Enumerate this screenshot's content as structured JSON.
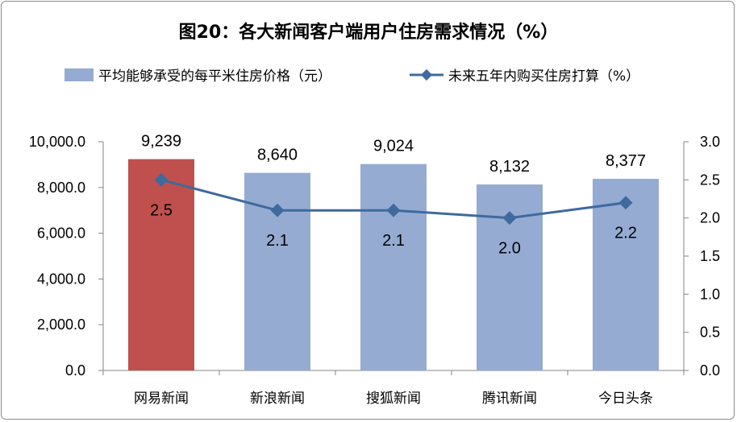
{
  "chart_data": {
    "type": "bar",
    "title": "图20：各大新闻客户端用户住房需求情况（%）",
    "categories": [
      "网易新闻",
      "新浪新闻",
      "搜狐新闻",
      "腾讯新闻",
      "今日头条"
    ],
    "series": [
      {
        "name": "平均能够承受的每平米住房价格（元）",
        "type": "bar",
        "axis": "left",
        "values": [
          9239,
          8640,
          9024,
          8132,
          8377
        ],
        "value_labels": [
          "9,239",
          "8,640",
          "9,024",
          "8,132",
          "8,377"
        ],
        "colors": [
          "#C0504D",
          "#95ABD2",
          "#95ABD2",
          "#95ABD2",
          "#95ABD2"
        ]
      },
      {
        "name": "未来五年内购买住房打算（%）",
        "type": "line",
        "axis": "right",
        "values": [
          2.5,
          2.1,
          2.1,
          2.0,
          2.2
        ],
        "value_labels": [
          "2.5",
          "2.1",
          "2.1",
          "2.0",
          "2.2"
        ],
        "color": "#3E6A9E"
      }
    ],
    "y_left": {
      "ylim": [
        0,
        10000
      ],
      "ticks": [
        0,
        2000,
        4000,
        6000,
        8000,
        10000
      ],
      "tick_labels": [
        "0.0",
        "2,000.0",
        "4,000.0",
        "6,000.0",
        "8,000.0",
        "10,000.0"
      ]
    },
    "y_right": {
      "ylim": [
        0,
        3.0
      ],
      "ticks": [
        0,
        0.5,
        1.0,
        1.5,
        2.0,
        2.5,
        3.0
      ],
      "tick_labels": [
        "0.0",
        "0.5",
        "1.0",
        "1.5",
        "2.0",
        "2.5",
        "3.0"
      ]
    },
    "legend_position": "top",
    "grid": false
  }
}
